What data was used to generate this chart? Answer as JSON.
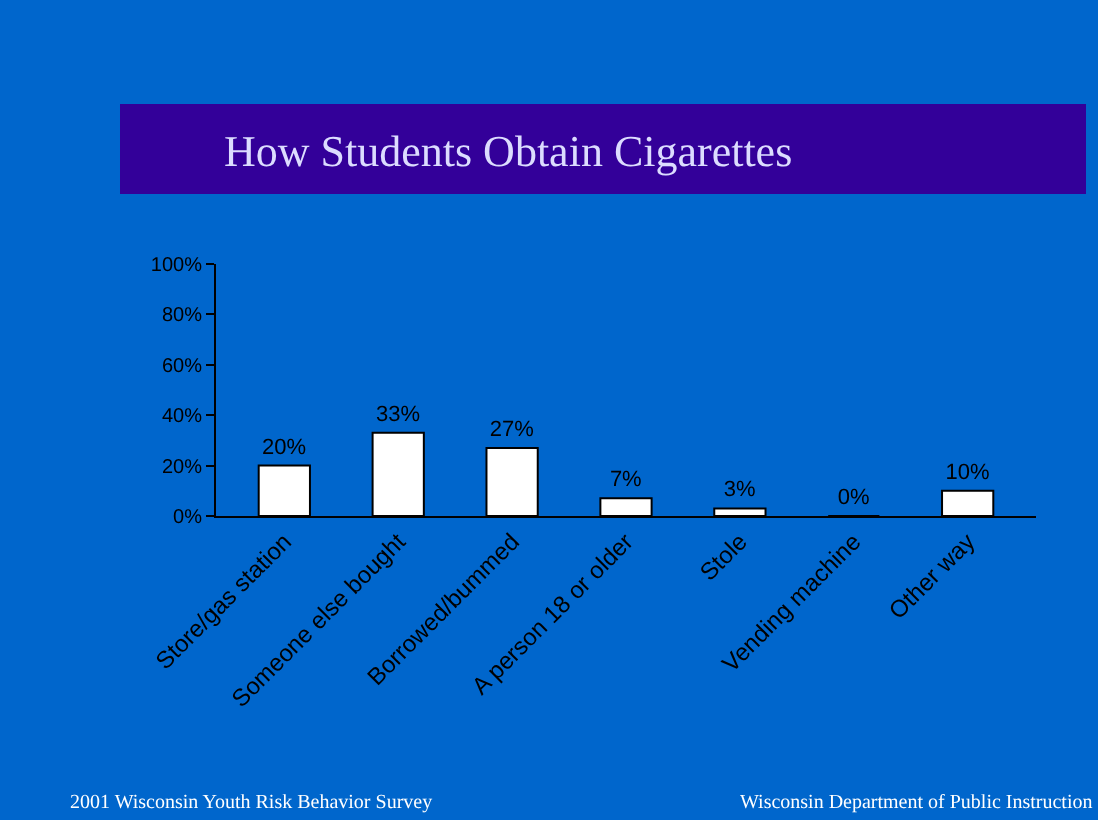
{
  "chart_data": {
    "type": "bar",
    "title": "How Students Obtain Cigarettes",
    "categories": [
      "Store/gas station",
      "Someone else bought",
      "Borrowed/bummed",
      "A person 18 or older",
      "Stole",
      "Vending machine",
      "Other way"
    ],
    "values": [
      20,
      33,
      27,
      7,
      3,
      0,
      10
    ],
    "value_labels": [
      "20%",
      "33%",
      "27%",
      "7%",
      "3%",
      "0%",
      "10%"
    ],
    "color": "#ffffff",
    "ylim": [
      0,
      100
    ],
    "yticks": [
      {
        "value": 0,
        "label": "0%"
      },
      {
        "value": 20,
        "label": "20%"
      },
      {
        "value": 40,
        "label": "40%"
      },
      {
        "value": 60,
        "label": "60%"
      },
      {
        "value": 80,
        "label": "80%"
      },
      {
        "value": 100,
        "label": "100%"
      }
    ],
    "grid": false,
    "legend": false,
    "annotations": [
      "2001 Wisconsin Youth Risk Behavior Survey",
      "Wisconsin Department of Public Instruction"
    ]
  }
}
